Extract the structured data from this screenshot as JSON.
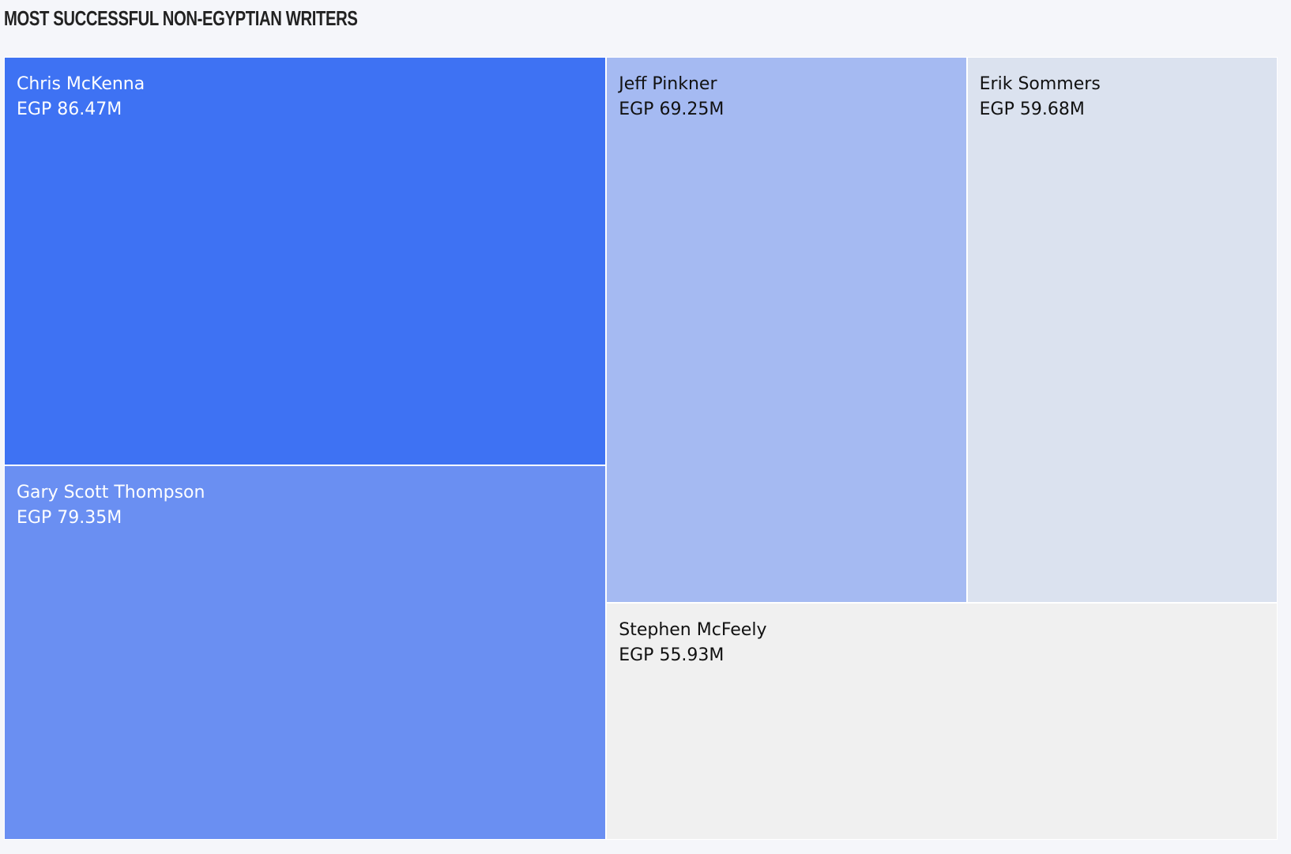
{
  "chart_data": {
    "type": "treemap",
    "title": "MOST SUCCESSFUL NON-EGYPTIAN WRITERS",
    "unit_prefix": "EGP",
    "unit_suffix": "M",
    "items": [
      {
        "name": "Chris McKenna",
        "value": 86.47,
        "value_label": "EGP 86.47M",
        "color": "#3e72f3",
        "text_color": "#ffffff"
      },
      {
        "name": "Gary Scott Thompson",
        "value": 79.35,
        "value_label": "EGP 79.35M",
        "color": "#6a8ff2",
        "text_color": "#ffffff"
      },
      {
        "name": "Jeff Pinkner",
        "value": 69.25,
        "value_label": "EGP 69.25M",
        "color": "#a5baf2",
        "text_color": "#111111"
      },
      {
        "name": "Erik Sommers",
        "value": 59.68,
        "value_label": "EGP 59.68M",
        "color": "#dbe2ef",
        "text_color": "#111111"
      },
      {
        "name": "Stephen McFeely",
        "value": 55.93,
        "value_label": "EGP 55.93M",
        "color": "#f0f0f0",
        "text_color": "#111111"
      }
    ]
  }
}
